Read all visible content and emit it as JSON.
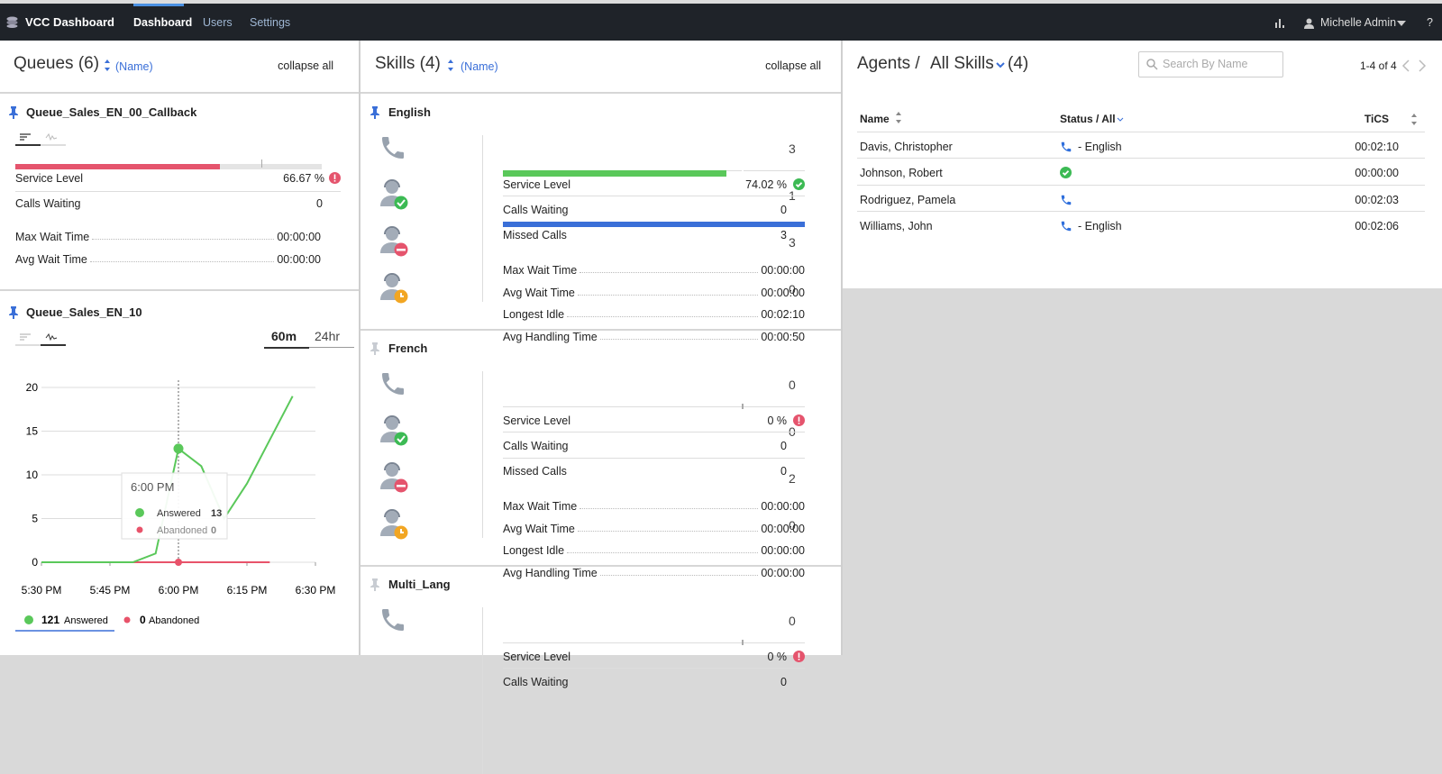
{
  "nav": {
    "brand": "VCC Dashboard",
    "tabs": [
      "Dashboard",
      "Users",
      "Settings"
    ],
    "active_tab": 0,
    "user": "Michelle Admin",
    "help": "?"
  },
  "queues": {
    "title": "Queues (6)",
    "sort": "(Name)",
    "collapse": "collapse all",
    "items": [
      {
        "name": "Queue_Sales_EN_00_Callback",
        "service_level": {
          "label": "Service Level",
          "value": 66.67,
          "value_label": "66.67 %"
        },
        "calls_waiting": {
          "label": "Calls Waiting",
          "value": 0
        },
        "times": [
          {
            "label": "Max Wait Time",
            "value": "00:00:00"
          },
          {
            "label": "Avg Wait Time",
            "value": "00:00:00"
          }
        ]
      },
      {
        "name": "Queue_Sales_EN_10",
        "ranges": [
          "60m",
          "24hr"
        ],
        "chart": {
          "type": "line",
          "categories": [
            "5:30 PM",
            "5:35 PM",
            "5:40 PM",
            "5:45 PM",
            "5:50 PM",
            "5:55 PM",
            "6:00 PM",
            "6:05 PM",
            "6:10 PM",
            "6:15 PM",
            "6:20 PM",
            "6:25 PM",
            "6:30 PM"
          ],
          "xticks": [
            "5:30 PM",
            "5:45 PM",
            "6:00 PM",
            "6:15 PM",
            "6:30 PM"
          ],
          "ylim": [
            0,
            20
          ],
          "yticks": [
            0,
            5,
            10,
            15,
            20
          ],
          "grid": true,
          "series": [
            {
              "name": "Answered",
              "color": "#5ac85a",
              "values": [
                0,
                0,
                0,
                0,
                0,
                1,
                13,
                11,
                5,
                9,
                14,
                19,
                null
              ],
              "total": 121
            },
            {
              "name": "Abandoned",
              "color": "#e8536a",
              "values": [
                0,
                0,
                0,
                0,
                0,
                0,
                0,
                0,
                0,
                0,
                0,
                null,
                null
              ],
              "total": 0
            }
          ],
          "tooltip": {
            "title": "6:00 PM",
            "index": 6
          }
        }
      }
    ]
  },
  "skills": {
    "title": "Skills (4)",
    "sort": "(Name)",
    "collapse": "collapse all",
    "items": [
      {
        "name": "English",
        "pinned": true,
        "counts": [
          3,
          1,
          3,
          0
        ],
        "service_level": {
          "label": "Service Level",
          "value": 74.02,
          "value_label": "74.02 %"
        },
        "calls_waiting": {
          "label": "Calls Waiting",
          "value": 0
        },
        "missed_calls": {
          "label": "Missed Calls",
          "value": 3
        },
        "times": [
          {
            "label": "Max Wait Time",
            "value": "00:00:00"
          },
          {
            "label": "Avg Wait Time",
            "value": "00:00:00"
          },
          {
            "label": "Longest Idle",
            "value": "00:02:10"
          },
          {
            "label": "Avg Handling Time",
            "value": "00:00:50"
          }
        ]
      },
      {
        "name": "French",
        "pinned": false,
        "counts": [
          0,
          0,
          2,
          0
        ],
        "service_level": {
          "label": "Service Level",
          "value": 0,
          "value_label": "0 %"
        },
        "calls_waiting": {
          "label": "Calls Waiting",
          "value": 0
        },
        "missed_calls": {
          "label": "Missed Calls",
          "value": 0
        },
        "times": [
          {
            "label": "Max Wait Time",
            "value": "00:00:00"
          },
          {
            "label": "Avg Wait Time",
            "value": "00:00:00"
          },
          {
            "label": "Longest Idle",
            "value": "00:00:00"
          },
          {
            "label": "Avg Handling Time",
            "value": "00:00:00"
          }
        ]
      },
      {
        "name": "Multi_Lang",
        "pinned": false,
        "counts": [
          0
        ],
        "service_level": {
          "label": "Service Level",
          "value": 0,
          "value_label": "0 %"
        },
        "calls_waiting": {
          "label": "Calls Waiting",
          "value": 0
        }
      }
    ]
  },
  "agents": {
    "title": "Agents /",
    "filter": "All Skills",
    "count": "(4)",
    "search_placeholder": "Search By Name",
    "pagination": "1-4 of 4",
    "columns": [
      "Name",
      "Status / All",
      "TiCS"
    ],
    "rows": [
      {
        "name": "Davis, Christopher",
        "status": "phone",
        "skill": "- English",
        "tics": "00:02:10"
      },
      {
        "name": "Johnson, Robert",
        "status": "available",
        "tics": "00:00:00"
      },
      {
        "name": "Rodriguez, Pamela",
        "status": "phone",
        "tics": "00:02:03"
      },
      {
        "name": "Williams, John",
        "status": "phone",
        "skill": "- English",
        "tics": "00:02:06"
      }
    ]
  }
}
